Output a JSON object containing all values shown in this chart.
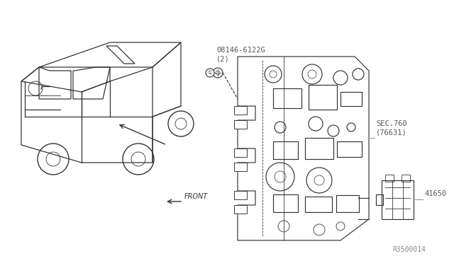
{
  "background_color": "#ffffff",
  "title": "",
  "diagram_ref": "R3500014",
  "labels": {
    "part1": "08146-6122G\n(2)",
    "part2": "SEC.760\n(76631)",
    "part3": "41650"
  },
  "front_arrow": "← FRONT",
  "text_color": "#555555",
  "line_color": "#555555"
}
